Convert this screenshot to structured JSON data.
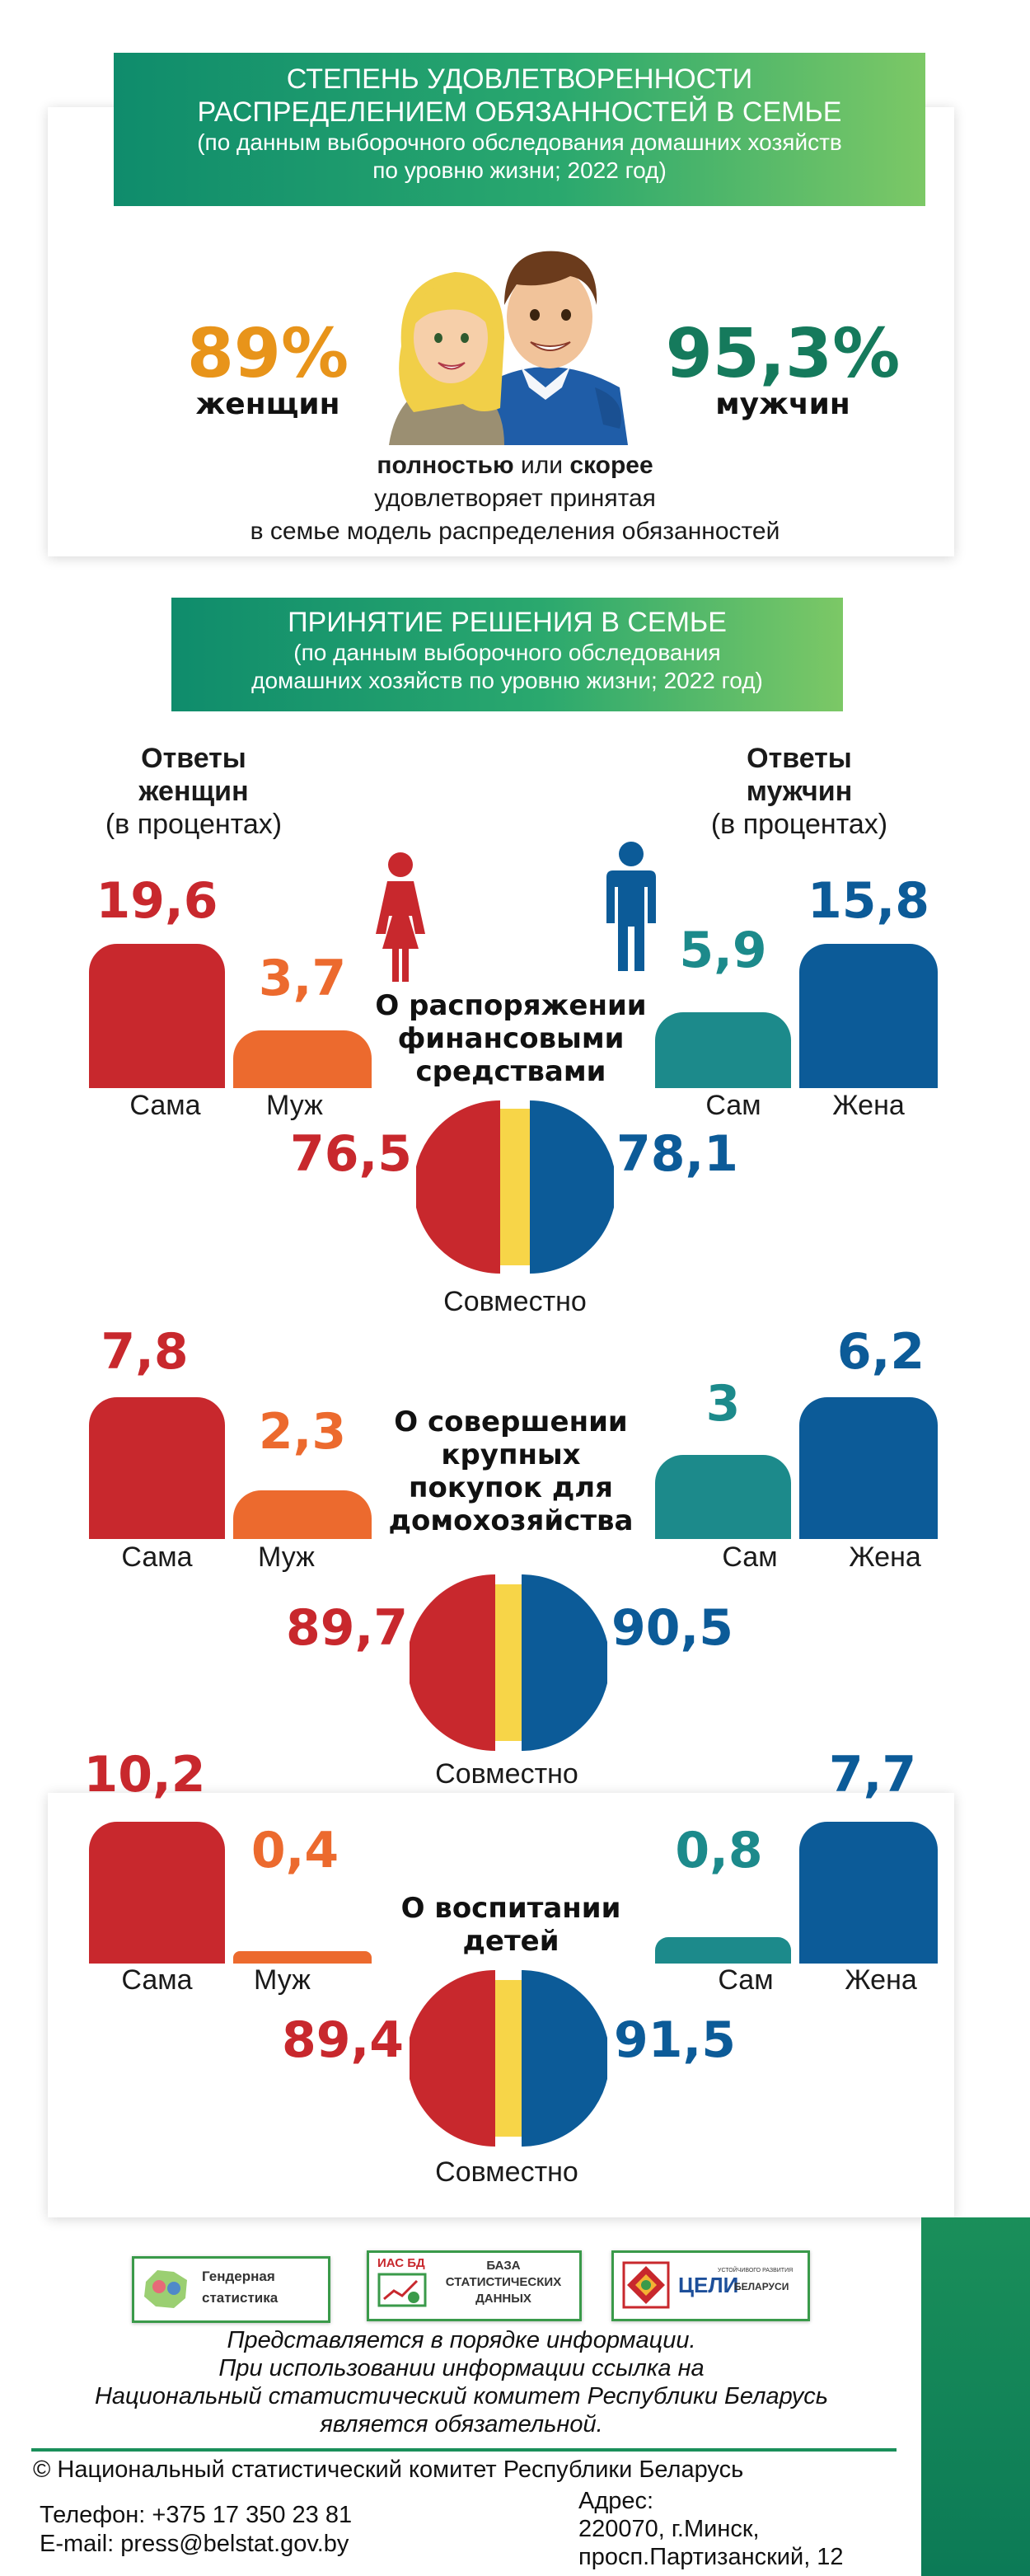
{
  "header": {
    "title_line1": "СТЕПЕНЬ УДОВЛЕТВОРЕННОСТИ",
    "title_line2": "РАСПРЕДЕЛЕНИЕМ ОБЯЗАННОСТЕЙ В СЕМЬЕ",
    "subtitle_line1": "(по данным выборочного обследования домашних хозяйств",
    "subtitle_line2": "по уровню жизни; 2022 год)"
  },
  "satisfaction": {
    "women_value": "89%",
    "women_label": "женщин",
    "men_value": "95,3%",
    "men_label": "мужчин",
    "caption_bold1": "полностью",
    "caption_or": " или ",
    "caption_bold2": "скорее",
    "caption_line2": "удовлетворяет принятая",
    "caption_line3": "в семье модель распределения обязанностей"
  },
  "decisions_header": {
    "title": "ПРИНЯТИЕ РЕШЕНИЯ В СЕМЬЕ",
    "subtitle_line1": "(по данным выборочного обследования",
    "subtitle_line2": "домашних хозяйств по уровню жизни; 2022 год)"
  },
  "women_heading": {
    "line1": "Ответы",
    "line2": "женщин",
    "line3": "(в процентах)"
  },
  "men_heading": {
    "line1": "Ответы",
    "line2": "мужчин",
    "line3": "(в процентах)"
  },
  "colors": {
    "red": "#c8282d",
    "orange": "#ec6a2e",
    "teal": "#1c8a8b",
    "blue": "#0c5b98",
    "yellow": "#f7d548",
    "green": "#0f8c6c"
  },
  "icons": [
    "woman-icon",
    "man-icon"
  ],
  "blocks": [
    {
      "topic_lines": [
        "О распоряжении",
        "финансовыми",
        "средствами"
      ],
      "women_self": {
        "value": "19,6",
        "number": 19.6,
        "label": "Сама"
      },
      "women_husband": {
        "value": "3,7",
        "number": 3.7,
        "label": "Муж"
      },
      "men_self": {
        "value": "5,9",
        "number": 5.9,
        "label": "Сам"
      },
      "men_wife": {
        "value": "15,8",
        "number": 15.8,
        "label": "Жена"
      },
      "joint_women": {
        "value": "76,5",
        "number": 76.5
      },
      "joint_men": {
        "value": "78,1",
        "number": 78.1
      },
      "joint_label": "Совместно"
    },
    {
      "topic_lines": [
        "О совершении",
        "крупных",
        "покупок для",
        "домохозяйства"
      ],
      "women_self": {
        "value": "7,8",
        "number": 7.8,
        "label": "Сама"
      },
      "women_husband": {
        "value": "2,3",
        "number": 2.3,
        "label": "Муж"
      },
      "men_self": {
        "value": "3",
        "number": 3,
        "label": "Сам"
      },
      "men_wife": {
        "value": "6,2",
        "number": 6.2,
        "label": "Жена"
      },
      "joint_women": {
        "value": "89,7",
        "number": 89.7
      },
      "joint_men": {
        "value": "90,5",
        "number": 90.5
      },
      "joint_label": "Совместно"
    },
    {
      "topic_lines": [
        "О воспитании",
        "детей"
      ],
      "women_self": {
        "value": "10,2",
        "number": 10.2,
        "label": "Сама"
      },
      "women_husband": {
        "value": "0,4",
        "number": 0.4,
        "label": "Муж"
      },
      "men_self": {
        "value": "0,8",
        "number": 0.8,
        "label": "Сам"
      },
      "men_wife": {
        "value": "7,7",
        "number": 7.7,
        "label": "Жена"
      },
      "joint_women": {
        "value": "89,4",
        "number": 89.4
      },
      "joint_men": {
        "value": "91,5",
        "number": 91.5
      },
      "joint_label": "Совместно"
    }
  ],
  "logos": {
    "gender_line1": "Гендерная",
    "gender_line2": "статистика",
    "ias_tag": "ИАС БД",
    "base_line1": "БАЗА",
    "base_line2": "СТАТИСТИЧЕСКИХ",
    "base_line3": "ДАННЫХ",
    "sdg_main": "ЦЕЛИ",
    "sdg_sub_top": "УСТОЙЧИВОГО РАЗВИТИЯ",
    "sdg_sub_bottom": "БЕЛАРУСИ"
  },
  "notice": {
    "line1": "Представляется в порядке информации.",
    "line2": "При использовании информации ссылка на",
    "line3": "Национальный статистический комитет Республики Беларусь",
    "line4": "является обязательной."
  },
  "footer": {
    "copyright": "© Национальный статистический комитет Республики Беларусь",
    "phone": "Телефон: +375 17 350 23 81",
    "email": "E-mail: press@belstat.gov.by",
    "address_label": "Адрес:",
    "address_line1": "220070, г.Минск,",
    "address_line2": "просп.Партизанский, 12"
  }
}
